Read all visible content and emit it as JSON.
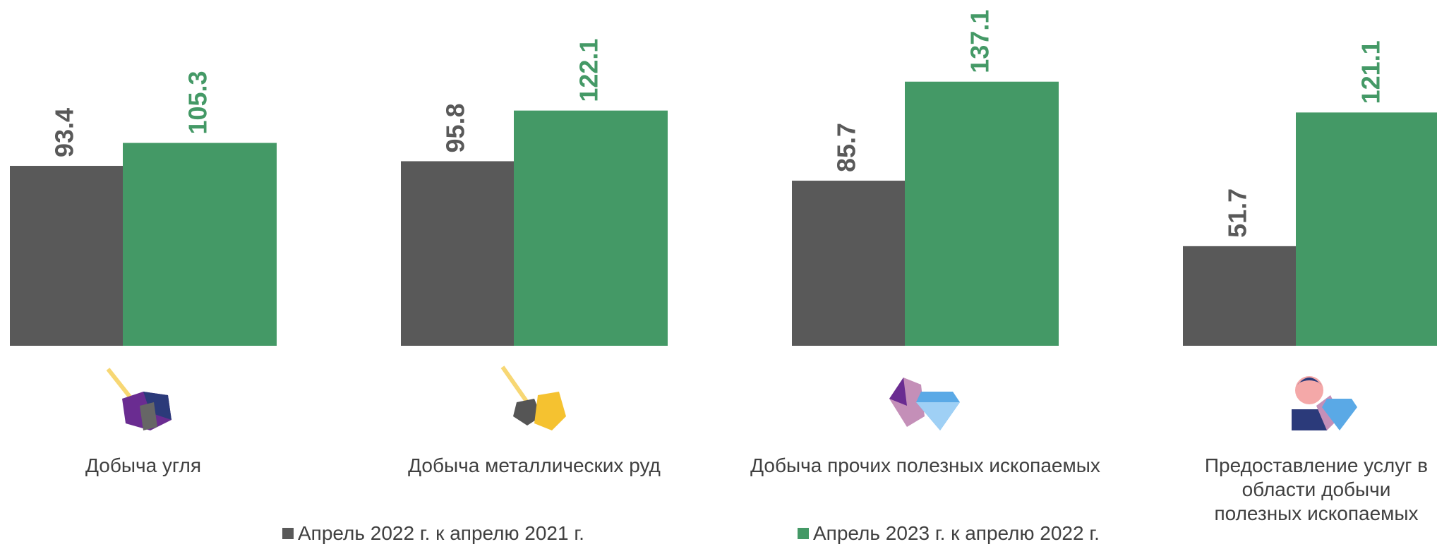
{
  "chart_data": {
    "type": "bar",
    "categories": [
      "Добыча угля",
      "Добыча металлических руд",
      "Добыча прочих полезных ископаемых",
      "Предоставление услуг в области добычи полезных ископаемых"
    ],
    "series": [
      {
        "name": "Апрель 2022 г. к апрелю 2021 г.",
        "color": "#595959",
        "values": [
          93.4,
          95.8,
          85.7,
          51.7
        ]
      },
      {
        "name": "Апрель 2023 г. к апрелю 2022 г.",
        "color": "#449966",
        "values": [
          105.3,
          122.1,
          137.1,
          121.1
        ]
      }
    ]
  }
}
